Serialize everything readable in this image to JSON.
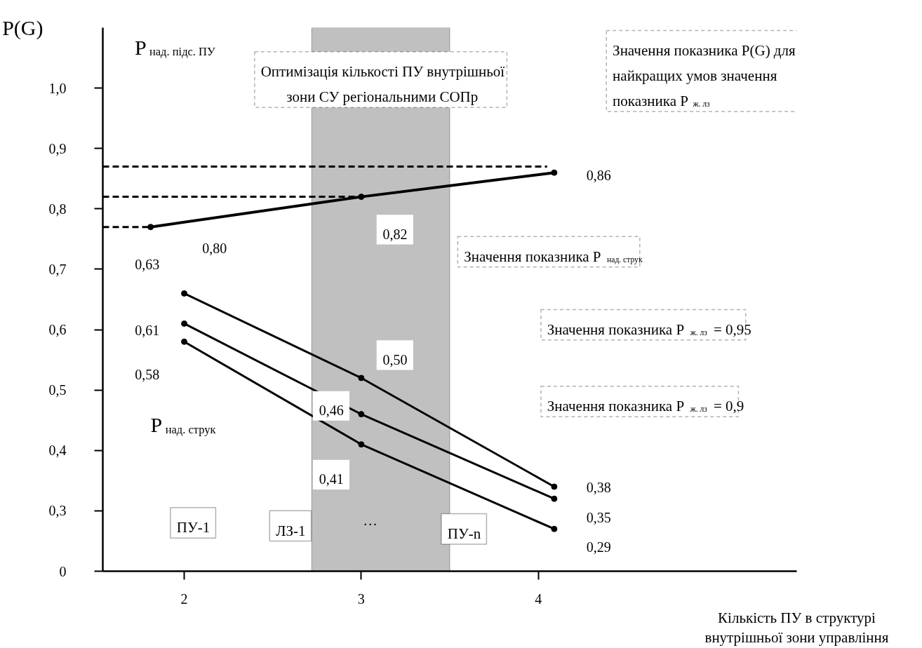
{
  "chart_data": {
    "type": "line",
    "xlabel": "Кількість ПУ в структурі\nвнутрішньої зони управління",
    "ylabel": "P(G)",
    "xlim": [
      1.54,
      5.46
    ],
    "xticks": [
      2,
      3,
      4
    ],
    "ylim": [
      0.2,
      1.1
    ],
    "yticks": [
      {
        "value": 0.2,
        "label": "0"
      },
      {
        "value": 0.3,
        "label": "0,3"
      },
      {
        "value": 0.4,
        "label": "0,4"
      },
      {
        "value": 0.5,
        "label": "0,5"
      },
      {
        "value": 0.6,
        "label": "0,6"
      },
      {
        "value": 0.7,
        "label": "0,7"
      },
      {
        "value": 0.8,
        "label": "0,8"
      },
      {
        "value": 0.9,
        "label": "0,9"
      },
      {
        "value": 1.0,
        "label": "1,0"
      }
    ],
    "grid": false,
    "marker": "circle",
    "line_style": "solid",
    "bands": [
      {
        "axis": "x",
        "from": 2.72,
        "to": 3.5,
        "color": "#c0c0c0"
      }
    ],
    "series": [
      {
        "color": "#000000",
        "x": [
          1.81,
          3,
          4.09
        ],
        "values": [
          0.77,
          0.82,
          0.86
        ]
      },
      {
        "color": "#000000",
        "x": [
          2,
          3,
          4.09
        ],
        "values": [
          0.66,
          0.52,
          0.34
        ]
      },
      {
        "color": "#000000",
        "x": [
          2,
          3,
          4.09
        ],
        "values": [
          0.61,
          0.46,
          0.32
        ]
      },
      {
        "color": "#000000",
        "x": [
          2,
          3,
          4.09
        ],
        "values": [
          0.58,
          0.41,
          0.27
        ]
      },
      {
        "color": "#000000",
        "x": [
          1.54,
          4.05
        ],
        "values": [
          0.87,
          0.87
        ],
        "line_style": "dashed",
        "marker": "none"
      },
      {
        "color": "#000000",
        "x": [
          1.54,
          2.97
        ],
        "values": [
          0.82,
          0.82
        ],
        "line_style": "dashed",
        "marker": "none"
      },
      {
        "color": "#000000",
        "x": [
          1.54,
          1.81
        ],
        "values": [
          0.77,
          0.77
        ],
        "line_style": "dashed",
        "marker": "none"
      }
    ],
    "annotations": [
      "Оптимізація кількості ПУ внутрішньої\nзони СУ регіональними СОПр",
      "Значення показника P(G) для\nнайкращих умов значення\nпоказника P$_{ж. лз}$",
      "Значення показника P$_{над. струк}$",
      "Значення показника P$_{ж. лз}$ = 0,95",
      "Значення показника P$_{ж. лз}$ = 0,9",
      "P$_{над. струк}$",
      "ПУ-1",
      "ЛЗ-1",
      "···",
      "ПУ-n",
      "P$_{над. підс. ПУ}$",
      "0,63",
      "0,80",
      "0,82",
      "0,86",
      "0,61",
      "0,58",
      "0,50",
      "0,46",
      "0,41",
      "0,38",
      "0,35",
      "0,29"
    ]
  }
}
